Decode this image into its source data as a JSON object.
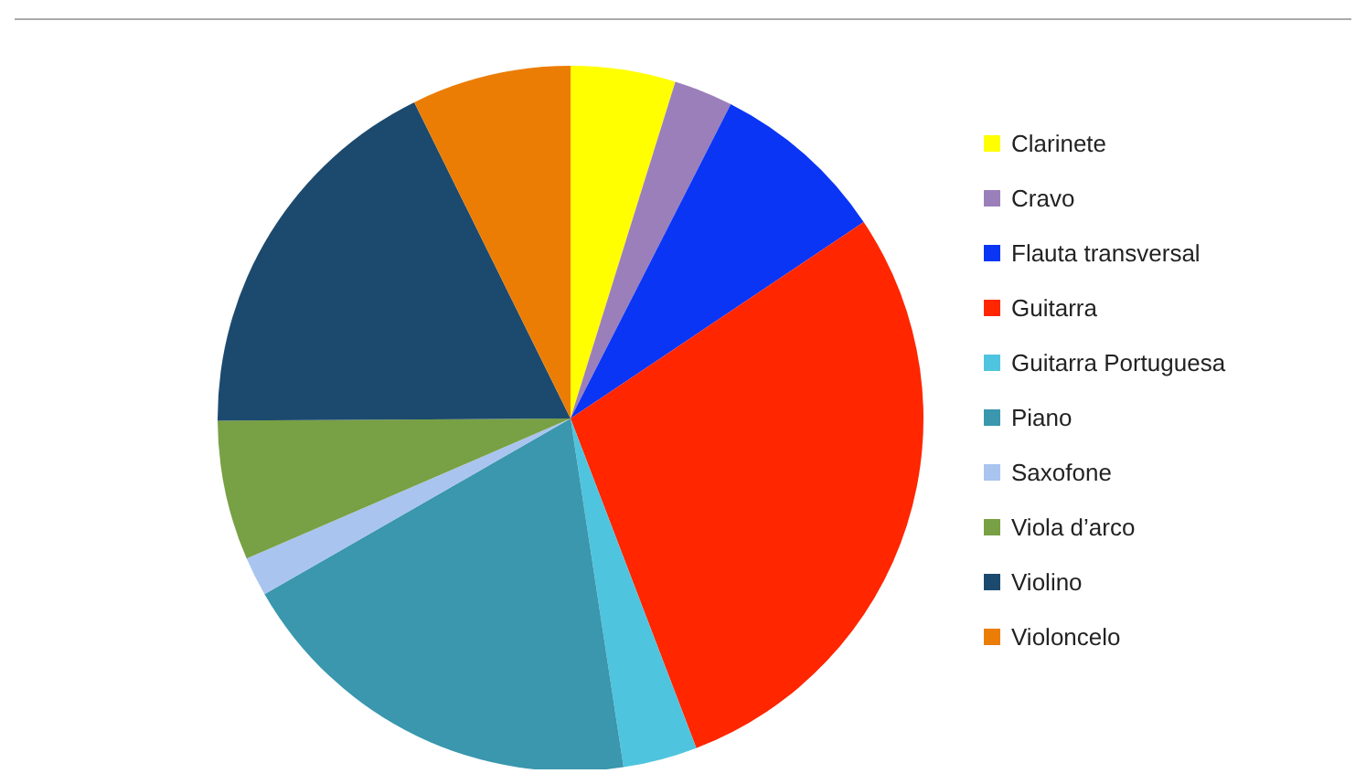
{
  "chart_data": {
    "type": "pie",
    "legend": "right",
    "categories": [
      "Clarinete",
      "Cravo",
      "Flauta transversal",
      "Guitarra",
      "Guitarra Portuguesa",
      "Piano",
      "Saxofone",
      "Viola d’arco",
      "Violino",
      "Violoncelo"
    ],
    "values": [
      4.8,
      2.7,
      8.1,
      28.6,
      3.4,
      19.1,
      1.8,
      6.4,
      17.8,
      7.3
    ],
    "colors": [
      "#ffff00",
      "#9b7fba",
      "#0a35f5",
      "#ff2600",
      "#4fc4de",
      "#3a97ad",
      "#a9c4ef",
      "#78a044",
      "#1c4a6e",
      "#eb7d05"
    ]
  }
}
